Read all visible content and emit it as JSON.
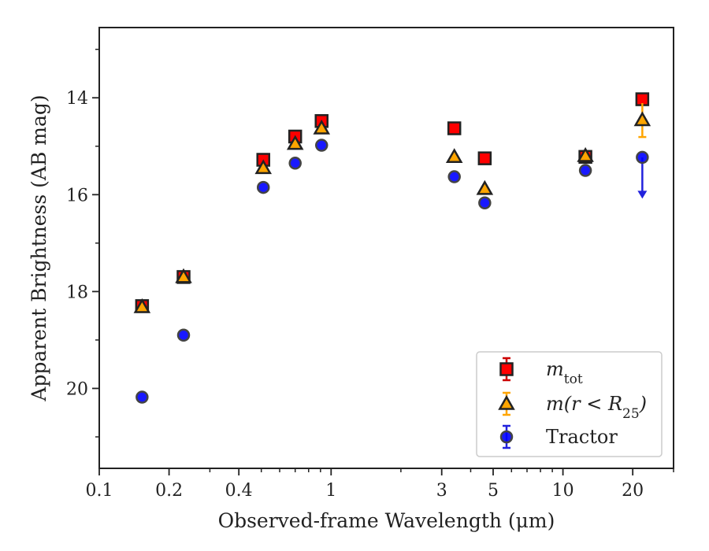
{
  "chart_data": {
    "type": "scatter",
    "title": "",
    "xlabel": "Observed-frame Wavelength (μm)",
    "ylabel": "Apparent Brightness (AB mag)",
    "xscale": "log",
    "xlim": [
      0.1,
      30
    ],
    "ylim": [
      21.65,
      12.55
    ],
    "y_inverted": true,
    "x_ticks": [
      {
        "value": 0.1,
        "label": "0.1"
      },
      {
        "value": 0.2,
        "label": "0.2"
      },
      {
        "value": 0.4,
        "label": "0.4"
      },
      {
        "value": 1,
        "label": "1"
      },
      {
        "value": 3,
        "label": "3"
      },
      {
        "value": 5,
        "label": "5"
      },
      {
        "value": 10,
        "label": "10"
      },
      {
        "value": 20,
        "label": "20"
      }
    ],
    "y_ticks": [
      {
        "value": 14,
        "label": "14"
      },
      {
        "value": 16,
        "label": "16"
      },
      {
        "value": 18,
        "label": "18"
      },
      {
        "value": 20,
        "label": "20"
      }
    ],
    "grid": false,
    "legend_position": "lower-right",
    "series": [
      {
        "name": "m_tot",
        "label_main": "m",
        "label_sub": "tot",
        "marker": "square",
        "color": "#ff0000",
        "errcolor": "#cc0000",
        "points": [
          {
            "x": 0.153,
            "y": 18.3
          },
          {
            "x": 0.231,
            "y": 17.7
          },
          {
            "x": 0.51,
            "y": 15.28
          },
          {
            "x": 0.7,
            "y": 14.8
          },
          {
            "x": 0.91,
            "y": 14.48
          },
          {
            "x": 3.4,
            "y": 14.63
          },
          {
            "x": 4.6,
            "y": 15.25
          },
          {
            "x": 12.5,
            "y": 15.22
          },
          {
            "x": 22,
            "y": 14.03
          }
        ]
      },
      {
        "name": "m(r<R25)",
        "label_main": "m(r < R",
        "label_sub": "25",
        "label_end": ")",
        "marker": "triangle",
        "color": "#ffa500",
        "errcolor": "#ffa500",
        "points": [
          {
            "x": 0.153,
            "y": 18.32
          },
          {
            "x": 0.231,
            "y": 17.7
          },
          {
            "x": 0.51,
            "y": 15.45
          },
          {
            "x": 0.7,
            "y": 14.95
          },
          {
            "x": 0.91,
            "y": 14.63
          },
          {
            "x": 3.4,
            "y": 15.22
          },
          {
            "x": 4.6,
            "y": 15.88
          },
          {
            "x": 12.5,
            "y": 15.2
          },
          {
            "x": 22,
            "y": 14.46,
            "yerr": 0.35
          }
        ]
      },
      {
        "name": "Tractor",
        "label_main": "Tractor",
        "marker": "circle",
        "color": "#0000ff",
        "errcolor": "#2222dd",
        "points": [
          {
            "x": 0.153,
            "y": 20.18
          },
          {
            "x": 0.231,
            "y": 18.9
          },
          {
            "x": 0.51,
            "y": 15.85
          },
          {
            "x": 0.7,
            "y": 15.35
          },
          {
            "x": 0.91,
            "y": 14.98
          },
          {
            "x": 3.4,
            "y": 15.63
          },
          {
            "x": 4.6,
            "y": 16.17
          },
          {
            "x": 12.5,
            "y": 15.5
          },
          {
            "x": 22,
            "y": 15.23,
            "upper_limit": true,
            "arrow_to": 16.05
          }
        ]
      }
    ]
  }
}
